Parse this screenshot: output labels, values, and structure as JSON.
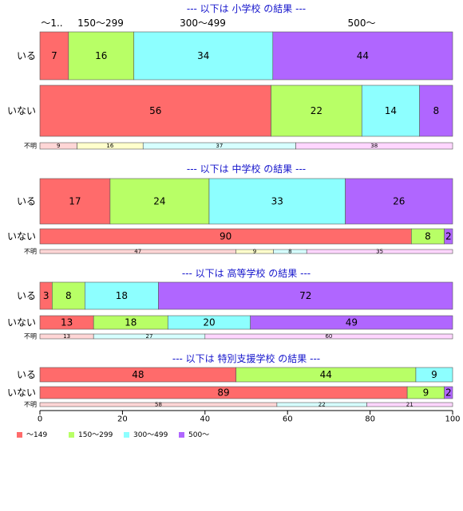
{
  "chart_data": {
    "type": "bar",
    "orientation": "horizontal-stacked-percent",
    "colors": [
      "#FF6B6B",
      "#B8FF66",
      "#8DFFFF",
      "#B066FF"
    ],
    "category_header": [
      "～1..",
      "150～299",
      "300～499",
      "500～"
    ],
    "legend": [
      "～149",
      "150～299",
      "300～499",
      "500～"
    ],
    "legend_position": "bottom-left",
    "xlim": [
      0,
      100
    ],
    "x_ticks": [
      "0",
      "20",
      "40",
      "60",
      "80",
      "100"
    ],
    "grid": false,
    "panels": [
      {
        "title": "--- 以下は 小学校 の結果 ---",
        "rows": [
          {
            "label": "いる",
            "values": [
              7,
              16,
              34,
              44
            ]
          },
          {
            "label": "いない",
            "values": [
              56,
              22,
              14,
              8
            ]
          },
          {
            "label": "不明",
            "values": [
              9,
              16,
              37,
              38
            ],
            "small": true
          }
        ]
      },
      {
        "title": "--- 以下は 中学校 の結果 ---",
        "rows": [
          {
            "label": "いる",
            "values": [
              17,
              24,
              33,
              26
            ]
          },
          {
            "label": "いない",
            "values": [
              90,
              8,
              0,
              2
            ]
          },
          {
            "label": "不明",
            "values": [
              47,
              9,
              8,
              35
            ],
            "small": true
          }
        ]
      },
      {
        "title": "--- 以下は 高等学校 の結果 ---",
        "rows": [
          {
            "label": "いる",
            "values": [
              3,
              8,
              18,
              72
            ]
          },
          {
            "label": "いない",
            "values": [
              13,
              18,
              20,
              49
            ]
          },
          {
            "label": "不明",
            "values": [
              13,
              0,
              27,
              60
            ],
            "small": true
          }
        ]
      },
      {
        "title": "--- 以下は 特別支援学校 の結果 ---",
        "rows": [
          {
            "label": "いる",
            "values": [
              48,
              44,
              9,
              0
            ]
          },
          {
            "label": "いない",
            "values": [
              89,
              9,
              0,
              2
            ]
          },
          {
            "label": "不明",
            "values": [
              58,
              0,
              22,
              21
            ],
            "small": true
          }
        ]
      }
    ]
  }
}
